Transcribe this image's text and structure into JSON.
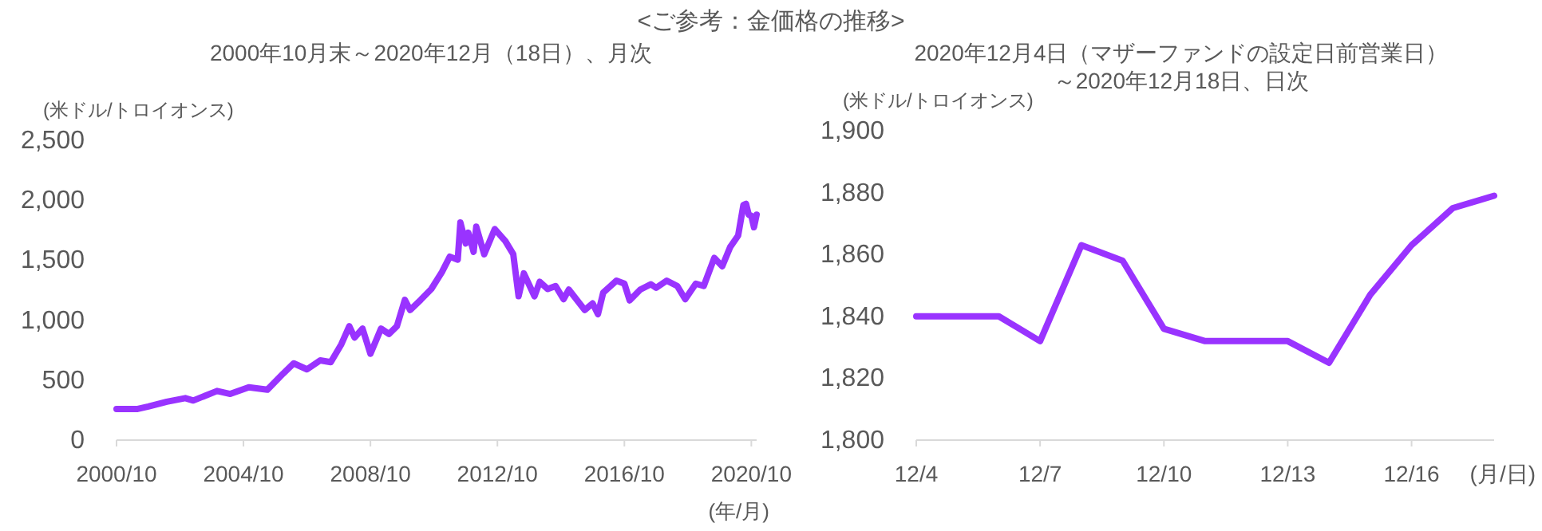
{
  "chart_data": [
    {
      "type": "line",
      "title": "<ご参考：金価格の推移>",
      "subtitle": "2000年10月末～2020年12月（18日）、月次",
      "ylabel": "(米ドル/トロイオンス)",
      "xlabel": "(年/月)",
      "x": [
        "2000-10",
        "2001-06",
        "2001-10",
        "2002-05",
        "2002-12",
        "2003-03",
        "2003-12",
        "2004-05",
        "2004-12",
        "2005-07",
        "2006-01",
        "2006-05",
        "2006-10",
        "2007-03",
        "2007-07",
        "2007-11",
        "2008-02",
        "2008-04",
        "2008-07",
        "2008-10",
        "2009-02",
        "2009-05",
        "2009-08",
        "2009-11",
        "2010-01",
        "2010-05",
        "2010-09",
        "2011-01",
        "2011-04",
        "2011-07",
        "2011-08",
        "2011-10",
        "2011-11",
        "2012-01",
        "2012-02",
        "2012-05",
        "2012-09",
        "2013-01",
        "2013-04",
        "2013-06",
        "2013-08",
        "2013-12",
        "2014-02",
        "2014-05",
        "2014-08",
        "2014-11",
        "2015-01",
        "2015-07",
        "2015-10",
        "2015-12",
        "2016-02",
        "2016-07",
        "2016-10",
        "2016-12",
        "2017-04",
        "2017-08",
        "2017-10",
        "2018-02",
        "2018-06",
        "2018-09",
        "2019-01",
        "2019-04",
        "2019-08",
        "2019-11",
        "2020-02",
        "2020-05",
        "2020-07",
        "2020-08",
        "2020-09",
        "2020-10",
        "2020-11",
        "2020-12"
      ],
      "series": [
        {
          "color": "#9933ff",
          "values": [
            260,
            260,
            280,
            320,
            350,
            330,
            410,
            385,
            440,
            420,
            555,
            640,
            590,
            665,
            650,
            800,
            950,
            855,
            930,
            720,
            930,
            885,
            950,
            1170,
            1085,
            1170,
            1260,
            1400,
            1530,
            1505,
            1815,
            1640,
            1730,
            1570,
            1780,
            1550,
            1760,
            1660,
            1550,
            1200,
            1390,
            1200,
            1320,
            1260,
            1285,
            1175,
            1255,
            1085,
            1140,
            1050,
            1230,
            1330,
            1305,
            1165,
            1255,
            1300,
            1270,
            1330,
            1285,
            1175,
            1305,
            1285,
            1520,
            1450,
            1610,
            1705,
            1960,
            1970,
            1880,
            1870,
            1775,
            1880
          ]
        }
      ],
      "xlim": [
        "2000-10",
        "2020-12"
      ],
      "xticks": [
        {
          "value": "2000-10",
          "label": "2000/10"
        },
        {
          "value": "2004-10",
          "label": "2004/10"
        },
        {
          "value": "2008-10",
          "label": "2008/10"
        },
        {
          "value": "2012-10",
          "label": "2012/10"
        },
        {
          "value": "2016-10",
          "label": "2016/10"
        },
        {
          "value": "2020-10",
          "label": "2020/10"
        }
      ],
      "ylim": [
        0,
        2500
      ],
      "yticks": [
        0,
        500,
        {
          "value": 1000,
          "label": "1,000"
        },
        {
          "value": 1500,
          "label": "1,500"
        },
        {
          "value": 2000,
          "label": "2,000"
        },
        {
          "value": 2500,
          "label": "2,500"
        }
      ],
      "grid": false
    },
    {
      "type": "line",
      "title": "2020年12月4日（マザーファンドの設定日前営業日）～2020年12月18日、日次",
      "ylabel": "(米ドル/トロイオンス)",
      "xlabel": "(月/日)",
      "categories": [
        "12/4",
        null,
        null,
        "12/7",
        null,
        null,
        "12/10",
        null,
        null,
        "12/13",
        null,
        null,
        "12/16",
        null,
        null
      ],
      "series": [
        {
          "color": "#9933ff",
          "values": [
            1840,
            1840,
            1840,
            1832,
            1863,
            1858,
            1836,
            1832,
            1832,
            1832,
            1825,
            1847,
            1863,
            1875,
            1879
          ]
        }
      ],
      "ylim": [
        1800,
        1900
      ],
      "yticks": [
        {
          "value": 1800,
          "label": "1,800"
        },
        {
          "value": 1820,
          "label": "1,820"
        },
        {
          "value": 1840,
          "label": "1,840"
        },
        {
          "value": 1860,
          "label": "1,860"
        },
        {
          "value": 1880,
          "label": "1,880"
        },
        {
          "value": 1900,
          "label": "1,900"
        }
      ],
      "grid": false
    }
  ]
}
